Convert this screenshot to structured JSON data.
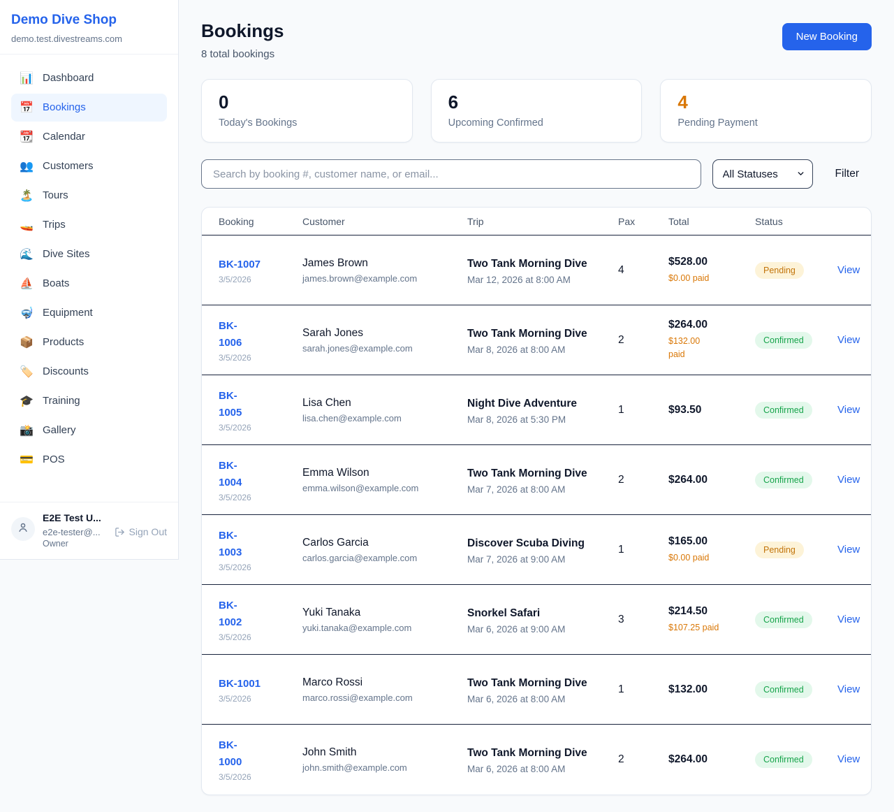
{
  "colors": {
    "accent_blue": "#2563eb",
    "page_bg": "#f8fafc",
    "card_border": "#e2e8f0",
    "row_divider": "#18233c",
    "paid_orange": "#d97706"
  },
  "sidebar": {
    "brand": {
      "name": "Demo Dive Shop",
      "domain": "demo.test.divestreams.com"
    },
    "nav": [
      {
        "label": "Dashboard",
        "icon": "📊",
        "icon_name": "bar-chart-icon",
        "active": false
      },
      {
        "label": "Bookings",
        "icon": "📅",
        "icon_name": "calendar-icon",
        "active": true
      },
      {
        "label": "Calendar",
        "icon": "📆",
        "icon_name": "tear-off-calendar-icon",
        "active": false
      },
      {
        "label": "Customers",
        "icon": "👥",
        "icon_name": "people-icon",
        "active": false
      },
      {
        "label": "Tours",
        "icon": "🏝️",
        "icon_name": "island-icon",
        "active": false
      },
      {
        "label": "Trips",
        "icon": "🚤",
        "icon_name": "speedboat-icon",
        "active": false
      },
      {
        "label": "Dive Sites",
        "icon": "🌊",
        "icon_name": "wave-icon",
        "active": false
      },
      {
        "label": "Boats",
        "icon": "⛵",
        "icon_name": "sailboat-icon",
        "active": false
      },
      {
        "label": "Equipment",
        "icon": "🤿",
        "icon_name": "diving-mask-icon",
        "active": false
      },
      {
        "label": "Products",
        "icon": "📦",
        "icon_name": "package-icon",
        "active": false
      },
      {
        "label": "Discounts",
        "icon": "🏷️",
        "icon_name": "tag-icon",
        "active": false
      },
      {
        "label": "Training",
        "icon": "🎓",
        "icon_name": "graduation-cap-icon",
        "active": false
      },
      {
        "label": "Gallery",
        "icon": "📸",
        "icon_name": "camera-icon",
        "active": false
      },
      {
        "label": "POS",
        "icon": "💳",
        "icon_name": "credit-card-icon",
        "active": false
      }
    ],
    "user": {
      "name": "E2E Test U...",
      "email": "e2e-tester@...",
      "role": "Owner",
      "sign_out_label": "Sign Out"
    }
  },
  "header": {
    "title": "Bookings",
    "subtitle": "8 total bookings",
    "new_booking_label": "New Booking"
  },
  "stats": [
    {
      "value": "0",
      "label": "Today's Bookings",
      "value_color": "#0f172a"
    },
    {
      "value": "6",
      "label": "Upcoming Confirmed",
      "value_color": "#0f172a"
    },
    {
      "value": "4",
      "label": "Pending Payment",
      "value_color": "#d97706"
    }
  ],
  "controls": {
    "search_placeholder": "Search by booking #, customer name, or email...",
    "status_filter_value": "All Statuses",
    "filter_label": "Filter"
  },
  "table": {
    "columns": [
      "Booking",
      "Customer",
      "Trip",
      "Pax",
      "Total",
      "Status",
      ""
    ],
    "action_label": "View",
    "status_styles": {
      "pending": {
        "text": "#c2740a",
        "bg": "#fdf3d8"
      },
      "confirmed": {
        "text": "#16a34a",
        "bg": "#e3f8eb"
      }
    },
    "rows": [
      {
        "number_lines": [
          "BK-1007"
        ],
        "date": "3/5/2026",
        "customer_name": "James Brown",
        "customer_email": "james.brown@example.com",
        "trip_name": "Two Tank Morning Dive",
        "trip_datetime": "Mar 12, 2026 at 8:00 AM",
        "pax": "4",
        "total": "$528.00",
        "paid_lines": [
          "$0.00 paid"
        ],
        "status": {
          "label": "Pending",
          "type": "pending"
        }
      },
      {
        "number_lines": [
          "BK-",
          "1006"
        ],
        "date": "3/5/2026",
        "customer_name": "Sarah Jones",
        "customer_email": "sarah.jones@example.com",
        "trip_name": "Two Tank Morning Dive",
        "trip_datetime": "Mar 8, 2026 at 8:00 AM",
        "pax": "2",
        "total": "$264.00",
        "paid_lines": [
          "$132.00",
          "paid"
        ],
        "status": {
          "label": "Confirmed",
          "type": "confirmed"
        }
      },
      {
        "number_lines": [
          "BK-",
          "1005"
        ],
        "date": "3/5/2026",
        "customer_name": "Lisa Chen",
        "customer_email": "lisa.chen@example.com",
        "trip_name": "Night Dive Adventure",
        "trip_datetime": "Mar 8, 2026 at 5:30 PM",
        "pax": "1",
        "total": "$93.50",
        "paid_lines": [],
        "status": {
          "label": "Confirmed",
          "type": "confirmed"
        }
      },
      {
        "number_lines": [
          "BK-",
          "1004"
        ],
        "date": "3/5/2026",
        "customer_name": "Emma Wilson",
        "customer_email": "emma.wilson@example.com",
        "trip_name": "Two Tank Morning Dive",
        "trip_datetime": "Mar 7, 2026 at 8:00 AM",
        "pax": "2",
        "total": "$264.00",
        "paid_lines": [],
        "status": {
          "label": "Confirmed",
          "type": "confirmed"
        }
      },
      {
        "number_lines": [
          "BK-",
          "1003"
        ],
        "date": "3/5/2026",
        "customer_name": "Carlos Garcia",
        "customer_email": "carlos.garcia@example.com",
        "trip_name": "Discover Scuba Diving",
        "trip_datetime": "Mar 7, 2026 at 9:00 AM",
        "pax": "1",
        "total": "$165.00",
        "paid_lines": [
          "$0.00 paid"
        ],
        "status": {
          "label": "Pending",
          "type": "pending"
        }
      },
      {
        "number_lines": [
          "BK-",
          "1002"
        ],
        "date": "3/5/2026",
        "customer_name": "Yuki Tanaka",
        "customer_email": "yuki.tanaka@example.com",
        "trip_name": "Snorkel Safari",
        "trip_datetime": "Mar 6, 2026 at 9:00 AM",
        "pax": "3",
        "total": "$214.50",
        "paid_lines": [
          "$107.25 paid"
        ],
        "status": {
          "label": "Confirmed",
          "type": "confirmed"
        }
      },
      {
        "number_lines": [
          "BK-1001"
        ],
        "date": "3/5/2026",
        "customer_name": "Marco Rossi",
        "customer_email": "marco.rossi@example.com",
        "trip_name": "Two Tank Morning Dive",
        "trip_datetime": "Mar 6, 2026 at 8:00 AM",
        "pax": "1",
        "total": "$132.00",
        "paid_lines": [],
        "status": {
          "label": "Confirmed",
          "type": "confirmed"
        }
      },
      {
        "number_lines": [
          "BK-",
          "1000"
        ],
        "date": "3/5/2026",
        "customer_name": "John Smith",
        "customer_email": "john.smith@example.com",
        "trip_name": "Two Tank Morning Dive",
        "trip_datetime": "Mar 6, 2026 at 8:00 AM",
        "pax": "2",
        "total": "$264.00",
        "paid_lines": [],
        "status": {
          "label": "Confirmed",
          "type": "confirmed"
        }
      }
    ]
  }
}
